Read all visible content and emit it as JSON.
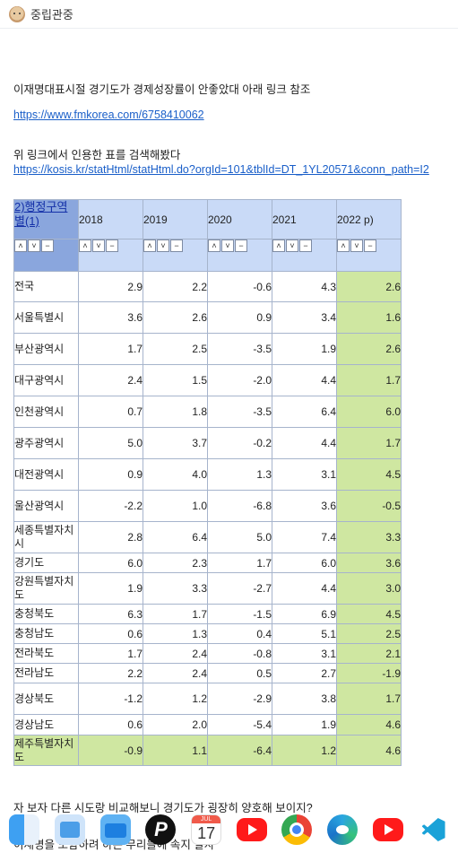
{
  "header": {
    "username": "중립관중"
  },
  "post": {
    "para1": "이재명대표시절 경기도가 경제성장률이 안좋았대 아래 링크 참조",
    "link1": "https://www.fmkorea.com/6758410062",
    "para2": "위 링크에서 인용한 표를 검색해봤다",
    "link2": "https://kosis.kr/statHtml/statHtml.do?orgId=101&tblId=DT_1YL20571&conn_path=I2",
    "para3": "자 보자 다른 시도랑 비교해보니 경기도가 굉장히 양호해 보이지?",
    "para4": "이재명을 모함하려 하는 무리들에 속지 말자"
  },
  "table": {
    "corner": "2)행정구역별(1)",
    "years": [
      "2018",
      "2019",
      "2020",
      "2021",
      "2022 p)"
    ],
    "controls": {
      "up": "˄",
      "down": "˅",
      "minus": "−"
    },
    "rows": [
      {
        "region": "전국",
        "values": [
          "2.9",
          "2.2",
          "-0.6",
          "4.3",
          "2.6"
        ]
      },
      {
        "region": "서울특별시",
        "values": [
          "3.6",
          "2.6",
          "0.9",
          "3.4",
          "1.6"
        ]
      },
      {
        "region": "부산광역시",
        "values": [
          "1.7",
          "2.5",
          "-3.5",
          "1.9",
          "2.6"
        ]
      },
      {
        "region": "대구광역시",
        "values": [
          "2.4",
          "1.5",
          "-2.0",
          "4.4",
          "1.7"
        ]
      },
      {
        "region": "인천광역시",
        "values": [
          "0.7",
          "1.8",
          "-3.5",
          "6.4",
          "6.0"
        ]
      },
      {
        "region": "광주광역시",
        "values": [
          "5.0",
          "3.7",
          "-0.2",
          "4.4",
          "1.7"
        ]
      },
      {
        "region": "대전광역시",
        "values": [
          "0.9",
          "4.0",
          "1.3",
          "3.1",
          "4.5"
        ]
      },
      {
        "region": "울산광역시",
        "values": [
          "-2.2",
          "1.0",
          "-6.8",
          "3.6",
          "-0.5"
        ]
      },
      {
        "region": "세종특별자치시",
        "values": [
          "2.8",
          "6.4",
          "5.0",
          "7.4",
          "3.3"
        ]
      },
      {
        "region": "경기도",
        "values": [
          "6.0",
          "2.3",
          "1.7",
          "6.0",
          "3.6"
        ]
      },
      {
        "region": "강원특별자치도",
        "values": [
          "1.9",
          "3.3",
          "-2.7",
          "4.4",
          "3.0"
        ]
      },
      {
        "region": "충청북도",
        "values": [
          "6.3",
          "1.7",
          "-1.5",
          "6.9",
          "4.5"
        ]
      },
      {
        "region": "충청남도",
        "values": [
          "0.6",
          "1.3",
          "0.4",
          "5.1",
          "2.5"
        ]
      },
      {
        "region": "전라북도",
        "values": [
          "1.7",
          "2.4",
          "-0.8",
          "3.1",
          "2.1"
        ]
      },
      {
        "region": "전라남도",
        "values": [
          "2.2",
          "2.4",
          "0.5",
          "2.7",
          "-1.9"
        ]
      },
      {
        "region": "경상북도",
        "values": [
          "-1.2",
          "1.2",
          "-2.9",
          "3.8",
          "1.7"
        ]
      },
      {
        "region": "경상남도",
        "values": [
          "0.6",
          "2.0",
          "-5.4",
          "1.9",
          "4.6"
        ]
      },
      {
        "region": "제주특별자치도",
        "values": [
          "-0.9",
          "1.1",
          "-6.4",
          "1.2",
          "4.6"
        ]
      }
    ],
    "highlight_color": "#cfe7a1"
  },
  "dock": {
    "items": [
      "finder-icon",
      "files-icon",
      "folder-icon",
      "picsart-icon",
      "calendar-icon",
      "youtube-icon",
      "chrome-icon",
      "edge-icon",
      "youtube-icon",
      "vscode-icon"
    ],
    "calendar_month": "JUL",
    "calendar_day": "17"
  }
}
